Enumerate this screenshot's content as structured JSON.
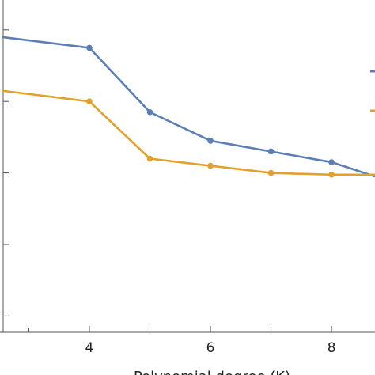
{
  "chart_data": {
    "type": "line",
    "xlabel": "Polynomial degree (K)",
    "xlim": [
      2.55,
      8.9
    ],
    "ylim": [
      0,
      1
    ],
    "x_ticks": [
      {
        "value": 4,
        "label": "4"
      },
      {
        "value": 6,
        "label": "6"
      },
      {
        "value": 8,
        "label": "8"
      }
    ],
    "x_minor_ticks": [
      3,
      5,
      7
    ],
    "y_ticks": [
      0.05,
      0.25,
      0.45,
      0.65,
      0.85
    ],
    "grid": false,
    "legend": "right, clipped",
    "series": [
      {
        "color": "#5b7fb5",
        "x": [
          2.55,
          4,
          5,
          6,
          7,
          8,
          8.9
        ],
        "y": [
          0.83,
          0.8,
          0.62,
          0.54,
          0.51,
          0.48,
          0.43
        ]
      },
      {
        "color": "#e0a22a",
        "x": [
          2.55,
          4,
          5,
          6,
          7,
          8,
          8.9
        ],
        "y": [
          0.68,
          0.65,
          0.49,
          0.47,
          0.45,
          0.445,
          0.445
        ]
      }
    ]
  }
}
